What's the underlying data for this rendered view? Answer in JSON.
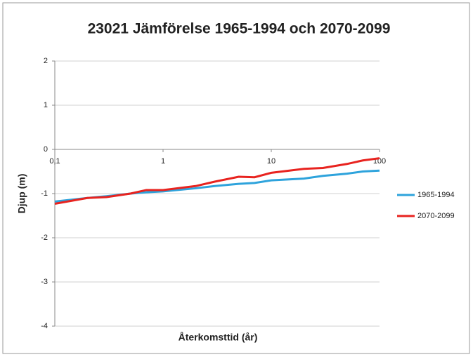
{
  "chart_data": {
    "type": "line",
    "title": "23021 Jämförelse 1965-1994 och 2070-2099",
    "x_label": "Återkomsttid (år)",
    "y_label": "Djup (m)",
    "x": [
      0.1,
      0.2,
      0.3,
      0.5,
      0.7,
      1,
      2,
      3,
      5,
      7,
      10,
      20,
      30,
      50,
      70,
      100
    ],
    "series": [
      {
        "name": "1965-1994",
        "color": "#2ea3dc",
        "values": [
          -1.18,
          -1.1,
          -1.06,
          -1.0,
          -0.97,
          -0.95,
          -0.88,
          -0.83,
          -0.78,
          -0.76,
          -0.7,
          -0.66,
          -0.6,
          -0.55,
          -0.5,
          -0.48
        ]
      },
      {
        "name": "2070-2099",
        "color": "#e8231f",
        "values": [
          -1.23,
          -1.1,
          -1.08,
          -1.0,
          -0.92,
          -0.92,
          -0.83,
          -0.73,
          -0.62,
          -0.63,
          -0.53,
          -0.44,
          -0.42,
          -0.33,
          -0.25,
          -0.2
        ]
      }
    ],
    "xlim": [
      0.1,
      100
    ],
    "xticks": [
      {
        "value": 0.1,
        "label": "0,1"
      },
      1,
      10,
      100
    ],
    "x_log": true,
    "ylim": [
      -4,
      2
    ],
    "yticks": [
      -4,
      -3,
      -2,
      -1,
      0,
      1,
      2
    ],
    "grid": true,
    "legend": "right"
  }
}
